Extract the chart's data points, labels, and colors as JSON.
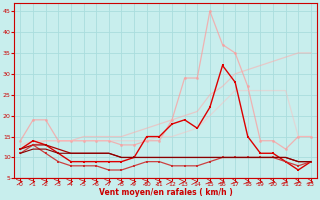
{
  "xlabel": "Vent moyen/en rafales ( km/h )",
  "xlim": [
    -0.5,
    23.5
  ],
  "ylim": [
    5,
    47
  ],
  "yticks": [
    5,
    10,
    15,
    20,
    25,
    30,
    35,
    40,
    45
  ],
  "xticks": [
    0,
    1,
    2,
    3,
    4,
    5,
    6,
    7,
    8,
    9,
    10,
    11,
    12,
    13,
    14,
    15,
    16,
    17,
    18,
    19,
    20,
    21,
    22,
    23
  ],
  "bg_color": "#c8eeed",
  "grid_color": "#aadddd",
  "series": [
    {
      "color": "#ff9999",
      "alpha": 0.7,
      "lw": 0.9,
      "marker": "o",
      "markersize": 2.0,
      "y": [
        14,
        19,
        19,
        14,
        14,
        14,
        14,
        14,
        13,
        13,
        14,
        14,
        19,
        29,
        29,
        45,
        37,
        35,
        27,
        14,
        14,
        12,
        15,
        15
      ]
    },
    {
      "color": "#ffaaaa",
      "alpha": 0.55,
      "lw": 0.9,
      "marker": null,
      "y": [
        12,
        13,
        14,
        14,
        14,
        15,
        15,
        15,
        15,
        16,
        17,
        18,
        19,
        20,
        21,
        25,
        27,
        30,
        31,
        32,
        33,
        34,
        35,
        35
      ]
    },
    {
      "color": "#ffbbbb",
      "alpha": 0.45,
      "lw": 0.9,
      "marker": null,
      "y": [
        13,
        14,
        14,
        14,
        14,
        14,
        14,
        14,
        14,
        14,
        14,
        15,
        15,
        16,
        17,
        20,
        23,
        26,
        26,
        26,
        26,
        26,
        15,
        15
      ]
    },
    {
      "color": "#dd0000",
      "alpha": 1.0,
      "lw": 1.0,
      "marker": "s",
      "markersize": 2.0,
      "y": [
        12,
        14,
        13,
        11,
        9,
        9,
        9,
        9,
        9,
        10,
        15,
        15,
        18,
        19,
        17,
        22,
        32,
        28,
        15,
        11,
        11,
        9,
        7,
        9
      ]
    },
    {
      "color": "#aa0000",
      "alpha": 1.0,
      "lw": 0.9,
      "marker": null,
      "y": [
        12,
        13,
        13,
        12,
        11,
        11,
        11,
        11,
        10,
        10,
        10,
        10,
        10,
        10,
        10,
        10,
        10,
        10,
        10,
        10,
        10,
        10,
        9,
        9
      ]
    },
    {
      "color": "#cc2222",
      "alpha": 0.85,
      "lw": 0.9,
      "marker": "s",
      "markersize": 2.0,
      "y": [
        11,
        13,
        11,
        9,
        8,
        8,
        8,
        7,
        7,
        8,
        9,
        9,
        8,
        8,
        8,
        9,
        10,
        10,
        10,
        10,
        10,
        9,
        8,
        9
      ]
    },
    {
      "color": "#880000",
      "alpha": 1.0,
      "lw": 0.8,
      "marker": null,
      "y": [
        11,
        12,
        12,
        11,
        11,
        11,
        11,
        11,
        10,
        10,
        10,
        10,
        10,
        10,
        10,
        10,
        10,
        10,
        10,
        10,
        10,
        10,
        9,
        9
      ]
    }
  ],
  "arrow_color": "#cc0000",
  "arrow_angles": [
    225,
    225,
    225,
    225,
    225,
    225,
    225,
    225,
    225,
    225,
    225,
    225,
    270,
    270,
    270,
    315,
    315,
    315,
    315,
    315,
    315,
    315,
    315,
    315
  ]
}
